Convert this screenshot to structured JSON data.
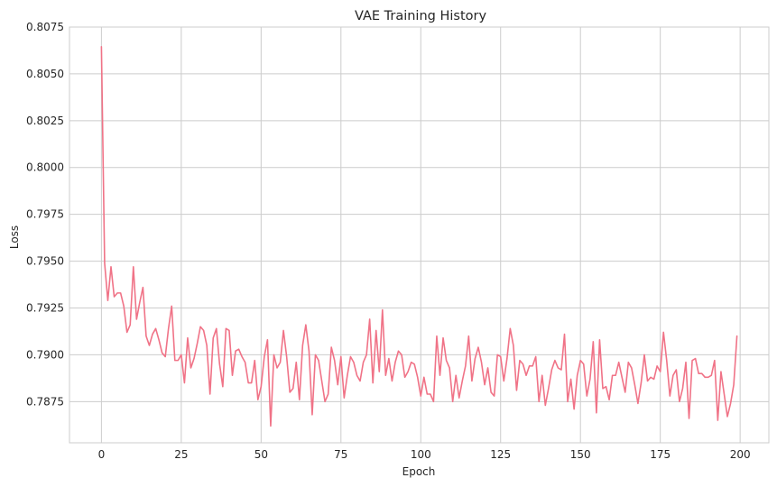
{
  "chart_data": {
    "type": "line",
    "title": "VAE Training History",
    "xlabel": "Epoch",
    "ylabel": "Loss",
    "xlim": [
      -10,
      209
    ],
    "ylim": [
      0.7853,
      0.8075
    ],
    "grid": true,
    "line_color": "#f07387",
    "x_ticks": [
      0,
      25,
      50,
      75,
      100,
      125,
      150,
      175,
      200
    ],
    "x_tick_labels": [
      "0",
      "25",
      "50",
      "75",
      "100",
      "125",
      "150",
      "175",
      "200"
    ],
    "y_ticks": [
      0.7875,
      0.79,
      0.7925,
      0.795,
      0.7975,
      0.8,
      0.8025,
      0.805,
      0.8075
    ],
    "y_tick_labels": [
      "0.7875",
      "0.7900",
      "0.7925",
      "0.7950",
      "0.7975",
      "0.8000",
      "0.8025",
      "0.8050",
      "0.8075"
    ],
    "series": [
      {
        "values": [
          0.80645,
          0.7949,
          0.7929,
          0.7947,
          0.7931,
          0.7933,
          0.7933,
          0.7926,
          0.7912,
          0.7916,
          0.7947,
          0.7919,
          0.7928,
          0.7936,
          0.791,
          0.7905,
          0.7911,
          0.7914,
          0.7908,
          0.7901,
          0.7899,
          0.7914,
          0.7926,
          0.7897,
          0.7897,
          0.79,
          0.7885,
          0.7909,
          0.7893,
          0.7898,
          0.7906,
          0.7915,
          0.7913,
          0.7905,
          0.7879,
          0.7909,
          0.7914,
          0.7895,
          0.7883,
          0.7914,
          0.7913,
          0.7889,
          0.7902,
          0.7903,
          0.7899,
          0.7896,
          0.7885,
          0.7885,
          0.7897,
          0.7876,
          0.7883,
          0.7899,
          0.7908,
          0.7862,
          0.79,
          0.7893,
          0.7896,
          0.7913,
          0.7899,
          0.788,
          0.7882,
          0.7896,
          0.7876,
          0.7905,
          0.7916,
          0.7902,
          0.7868,
          0.79,
          0.7897,
          0.7886,
          0.7875,
          0.7879,
          0.7904,
          0.7897,
          0.7884,
          0.7899,
          0.7877,
          0.7889,
          0.7899,
          0.7896,
          0.7889,
          0.7886,
          0.7896,
          0.79,
          0.7919,
          0.7885,
          0.7913,
          0.7891,
          0.7924,
          0.7889,
          0.7898,
          0.7886,
          0.7896,
          0.7902,
          0.79,
          0.7888,
          0.7891,
          0.7896,
          0.7895,
          0.7888,
          0.7878,
          0.7888,
          0.7879,
          0.7879,
          0.7875,
          0.791,
          0.7889,
          0.7909,
          0.7897,
          0.7893,
          0.7875,
          0.7889,
          0.7877,
          0.7886,
          0.7894,
          0.791,
          0.7886,
          0.7898,
          0.7904,
          0.7896,
          0.7884,
          0.7893,
          0.788,
          0.7878,
          0.79,
          0.7899,
          0.7886,
          0.7898,
          0.7914,
          0.7905,
          0.7881,
          0.7897,
          0.7895,
          0.7889,
          0.7894,
          0.7894,
          0.7899,
          0.7875,
          0.7889,
          0.7873,
          0.7882,
          0.7892,
          0.7897,
          0.7893,
          0.7892,
          0.7911,
          0.7875,
          0.7887,
          0.7871,
          0.7889,
          0.7897,
          0.7895,
          0.7878,
          0.7887,
          0.7907,
          0.7869,
          0.7908,
          0.7882,
          0.7883,
          0.7876,
          0.7889,
          0.7889,
          0.7896,
          0.7888,
          0.788,
          0.7896,
          0.7893,
          0.7884,
          0.7874,
          0.7885,
          0.79,
          0.7886,
          0.7888,
          0.7887,
          0.7894,
          0.7891,
          0.7912,
          0.7897,
          0.7878,
          0.7889,
          0.7892,
          0.7875,
          0.7882,
          0.7896,
          0.7866,
          0.7897,
          0.7898,
          0.789,
          0.789,
          0.7888,
          0.7888,
          0.7889,
          0.7897,
          0.7865,
          0.7891,
          0.7879,
          0.7867,
          0.7874,
          0.7884,
          0.791
        ]
      }
    ]
  }
}
